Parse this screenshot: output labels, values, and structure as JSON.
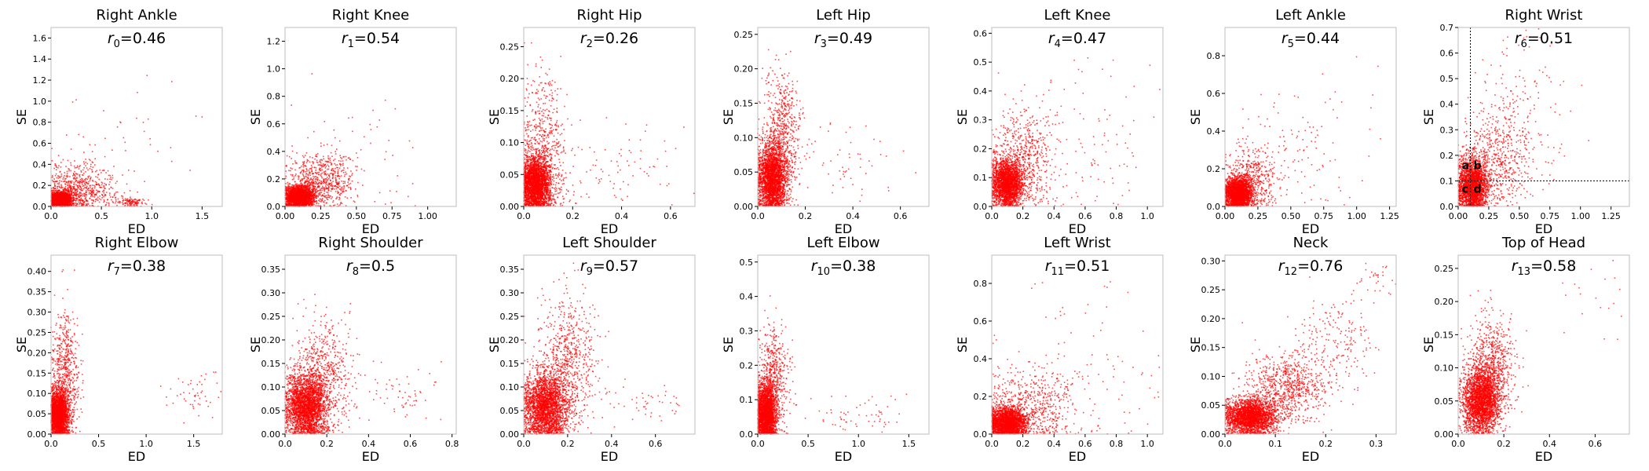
{
  "chart_data": [
    {
      "type": "scatter",
      "title": "Right Ankle",
      "r_name": "r",
      "r_sub": "0",
      "r_value": "0.46",
      "xlabel": "ED",
      "ylabel": "SE",
      "xlim": [
        0,
        1.7
      ],
      "ylim": [
        0,
        1.7
      ],
      "xticks": [
        0.0,
        0.5,
        1.0,
        1.5
      ],
      "yticks": [
        0.0,
        0.2,
        0.4,
        0.6,
        0.8,
        1.0,
        1.2,
        1.4,
        1.6
      ],
      "color": "#ff0000",
      "clusters": [
        {
          "cx": 0.1,
          "cy": 0.06,
          "sx": 0.05,
          "sy": 0.04,
          "n": 2200
        },
        {
          "cx": 0.25,
          "cy": 0.15,
          "sx": 0.18,
          "sy": 0.12,
          "n": 700
        },
        {
          "cx": 0.8,
          "cy": 0.04,
          "sx": 0.08,
          "sy": 0.02,
          "n": 120
        },
        {
          "cx": 0.6,
          "cy": 0.5,
          "sx": 0.3,
          "sy": 0.3,
          "n": 60
        }
      ]
    },
    {
      "type": "scatter",
      "title": "Right Knee",
      "r_name": "r",
      "r_sub": "1",
      "r_value": "0.54",
      "xlabel": "ED",
      "ylabel": "SE",
      "xlim": [
        0,
        1.2
      ],
      "ylim": [
        0,
        1.3
      ],
      "xticks": [
        0.0,
        0.25,
        0.5,
        0.75,
        1.0
      ],
      "yticks": [
        0.0,
        0.2,
        0.4,
        0.6,
        0.8,
        1.0,
        1.2
      ],
      "color": "#ff0000",
      "clusters": [
        {
          "cx": 0.1,
          "cy": 0.07,
          "sx": 0.05,
          "sy": 0.04,
          "n": 2200
        },
        {
          "cx": 0.25,
          "cy": 0.18,
          "sx": 0.12,
          "sy": 0.1,
          "n": 700
        },
        {
          "cx": 0.5,
          "cy": 0.35,
          "sx": 0.25,
          "sy": 0.25,
          "n": 60
        }
      ]
    },
    {
      "type": "scatter",
      "title": "Right Hip",
      "r_name": "r",
      "r_sub": "2",
      "r_value": "0.26",
      "xlabel": "ED",
      "ylabel": "SE",
      "xlim": [
        0,
        0.7
      ],
      "ylim": [
        0,
        0.28
      ],
      "xticks": [
        0.0,
        0.2,
        0.4,
        0.6
      ],
      "yticks": [
        0.0,
        0.05,
        0.1,
        0.15,
        0.2,
        0.25
      ],
      "color": "#ff0000",
      "clusters": [
        {
          "cx": 0.05,
          "cy": 0.035,
          "sx": 0.03,
          "sy": 0.02,
          "n": 2600
        },
        {
          "cx": 0.08,
          "cy": 0.08,
          "sx": 0.05,
          "sy": 0.06,
          "n": 700
        },
        {
          "cx": 0.4,
          "cy": 0.06,
          "sx": 0.12,
          "sy": 0.03,
          "n": 80
        }
      ]
    },
    {
      "type": "scatter",
      "title": "Left Hip",
      "r_name": "r",
      "r_sub": "3",
      "r_value": "0.49",
      "xlabel": "ED",
      "ylabel": "SE",
      "xlim": [
        0,
        0.72
      ],
      "ylim": [
        0,
        0.26
      ],
      "xticks": [
        0.0,
        0.2,
        0.4,
        0.6
      ],
      "yticks": [
        0.0,
        0.05,
        0.1,
        0.15,
        0.2,
        0.25
      ],
      "color": "#ff0000",
      "clusters": [
        {
          "cx": 0.06,
          "cy": 0.04,
          "sx": 0.03,
          "sy": 0.025,
          "n": 2600
        },
        {
          "cx": 0.1,
          "cy": 0.1,
          "sx": 0.04,
          "sy": 0.05,
          "n": 700
        },
        {
          "cx": 0.35,
          "cy": 0.07,
          "sx": 0.12,
          "sy": 0.03,
          "n": 60
        }
      ]
    },
    {
      "type": "scatter",
      "title": "Left Knee",
      "r_name": "r",
      "r_sub": "4",
      "r_value": "0.47",
      "xlabel": "ED",
      "ylabel": "SE",
      "xlim": [
        0,
        1.1
      ],
      "ylim": [
        0,
        0.62
      ],
      "xticks": [
        0.0,
        0.2,
        0.4,
        0.6,
        0.8,
        1.0
      ],
      "yticks": [
        0.0,
        0.1,
        0.2,
        0.3,
        0.4,
        0.5,
        0.6
      ],
      "color": "#ff0000",
      "clusters": [
        {
          "cx": 0.1,
          "cy": 0.08,
          "sx": 0.05,
          "sy": 0.04,
          "n": 2400
        },
        {
          "cx": 0.2,
          "cy": 0.16,
          "sx": 0.1,
          "sy": 0.09,
          "n": 600
        },
        {
          "cx": 0.6,
          "cy": 0.2,
          "sx": 0.25,
          "sy": 0.15,
          "n": 120
        }
      ]
    },
    {
      "type": "scatter",
      "title": "Left Ankle",
      "r_name": "r",
      "r_sub": "5",
      "r_value": "0.44",
      "xlabel": "ED",
      "ylabel": "SE",
      "xlim": [
        0,
        1.3
      ],
      "ylim": [
        0,
        0.95
      ],
      "xticks": [
        0.0,
        0.25,
        0.5,
        0.75,
        1.0,
        1.25
      ],
      "yticks": [
        0.0,
        0.2,
        0.4,
        0.6,
        0.8
      ],
      "color": "#ff0000",
      "clusters": [
        {
          "cx": 0.1,
          "cy": 0.07,
          "sx": 0.05,
          "sy": 0.04,
          "n": 2400
        },
        {
          "cx": 0.2,
          "cy": 0.14,
          "sx": 0.1,
          "sy": 0.09,
          "n": 500
        },
        {
          "cx": 0.6,
          "cy": 0.3,
          "sx": 0.3,
          "sy": 0.2,
          "n": 120
        }
      ]
    },
    {
      "type": "scatter",
      "title": "Right Wrist",
      "r_name": "r",
      "r_sub": "6",
      "r_value": "0.51",
      "xlabel": "ED",
      "ylabel": "SE",
      "xlim": [
        0,
        1.4
      ],
      "ylim": [
        0,
        0.7
      ],
      "xticks": [
        0.0,
        0.25,
        0.5,
        0.75,
        1.0,
        1.25
      ],
      "yticks": [
        0.0,
        0.1,
        0.2,
        0.3,
        0.4,
        0.5,
        0.6,
        0.7
      ],
      "color": "#ff0000",
      "threshold_x": 0.1,
      "threshold_y": 0.1,
      "quadrant_labels": [
        "a",
        "b",
        "c",
        "d"
      ],
      "clusters": [
        {
          "cx": 0.12,
          "cy": 0.08,
          "sx": 0.06,
          "sy": 0.05,
          "n": 2300
        },
        {
          "cx": 0.3,
          "cy": 0.18,
          "sx": 0.15,
          "sy": 0.1,
          "n": 600
        },
        {
          "cx": 0.5,
          "cy": 0.4,
          "sx": 0.2,
          "sy": 0.15,
          "n": 150
        }
      ]
    },
    {
      "type": "scatter",
      "title": "Right Elbow",
      "r_name": "r",
      "r_sub": "7",
      "r_value": "0.38",
      "xlabel": "ED",
      "ylabel": "SE",
      "xlim": [
        0,
        1.8
      ],
      "ylim": [
        0,
        0.44
      ],
      "xticks": [
        0.0,
        0.5,
        1.0,
        1.5
      ],
      "yticks": [
        0.0,
        0.05,
        0.1,
        0.15,
        0.2,
        0.25,
        0.3,
        0.35,
        0.4
      ],
      "color": "#ff0000",
      "clusters": [
        {
          "cx": 0.08,
          "cy": 0.05,
          "sx": 0.05,
          "sy": 0.03,
          "n": 2400
        },
        {
          "cx": 0.15,
          "cy": 0.15,
          "sx": 0.08,
          "sy": 0.08,
          "n": 600
        },
        {
          "cx": 1.5,
          "cy": 0.1,
          "sx": 0.15,
          "sy": 0.03,
          "n": 50
        }
      ]
    },
    {
      "type": "scatter",
      "title": "Right Shoulder",
      "r_name": "r",
      "r_sub": "8",
      "r_value": "0.5",
      "xlabel": "ED",
      "ylabel": "SE",
      "xlim": [
        0,
        0.82
      ],
      "ylim": [
        0,
        0.38
      ],
      "xticks": [
        0.0,
        0.2,
        0.4,
        0.6,
        0.8
      ],
      "yticks": [
        0.0,
        0.05,
        0.1,
        0.15,
        0.2,
        0.25,
        0.3,
        0.35
      ],
      "color": "#ff0000",
      "clusters": [
        {
          "cx": 0.1,
          "cy": 0.06,
          "sx": 0.05,
          "sy": 0.035,
          "n": 2600
        },
        {
          "cx": 0.18,
          "cy": 0.12,
          "sx": 0.07,
          "sy": 0.06,
          "n": 700
        },
        {
          "cx": 0.55,
          "cy": 0.08,
          "sx": 0.12,
          "sy": 0.03,
          "n": 60
        }
      ]
    },
    {
      "type": "scatter",
      "title": "Left Shoulder",
      "r_name": "r",
      "r_sub": "9",
      "r_value": "0.57",
      "xlabel": "ED",
      "ylabel": "SE",
      "xlim": [
        0,
        0.78
      ],
      "ylim": [
        0,
        0.38
      ],
      "xticks": [
        0.0,
        0.2,
        0.4,
        0.6
      ],
      "yticks": [
        0.0,
        0.05,
        0.1,
        0.15,
        0.2,
        0.25,
        0.3,
        0.35
      ],
      "color": "#ff0000",
      "clusters": [
        {
          "cx": 0.1,
          "cy": 0.06,
          "sx": 0.05,
          "sy": 0.035,
          "n": 2600
        },
        {
          "cx": 0.2,
          "cy": 0.15,
          "sx": 0.07,
          "sy": 0.07,
          "n": 700
        },
        {
          "cx": 0.55,
          "cy": 0.07,
          "sx": 0.1,
          "sy": 0.02,
          "n": 50
        }
      ]
    },
    {
      "type": "scatter",
      "title": "Left Elbow",
      "r_name": "r",
      "r_sub": "10",
      "r_value": "0.38",
      "xlabel": "ED",
      "ylabel": "SE",
      "xlim": [
        0,
        1.7
      ],
      "ylim": [
        0,
        0.52
      ],
      "xticks": [
        0.0,
        0.5,
        1.0,
        1.5
      ],
      "yticks": [
        0.0,
        0.1,
        0.2,
        0.3,
        0.4,
        0.5
      ],
      "color": "#ff0000",
      "clusters": [
        {
          "cx": 0.08,
          "cy": 0.06,
          "sx": 0.05,
          "sy": 0.04,
          "n": 2400
        },
        {
          "cx": 0.15,
          "cy": 0.15,
          "sx": 0.08,
          "sy": 0.08,
          "n": 600
        },
        {
          "cx": 1.0,
          "cy": 0.06,
          "sx": 0.3,
          "sy": 0.03,
          "n": 60
        }
      ]
    },
    {
      "type": "scatter",
      "title": "Left Wrist",
      "r_name": "r",
      "r_sub": "11",
      "r_value": "0.51",
      "xlabel": "ED",
      "ylabel": "SE",
      "xlim": [
        0,
        1.1
      ],
      "ylim": [
        0,
        0.95
      ],
      "xticks": [
        0.0,
        0.2,
        0.4,
        0.6,
        0.8,
        1.0
      ],
      "yticks": [
        0.0,
        0.2,
        0.4,
        0.6,
        0.8
      ],
      "color": "#ff0000",
      "clusters": [
        {
          "cx": 0.1,
          "cy": 0.06,
          "sx": 0.06,
          "sy": 0.04,
          "n": 2400
        },
        {
          "cx": 0.25,
          "cy": 0.15,
          "sx": 0.15,
          "sy": 0.1,
          "n": 600
        },
        {
          "cx": 0.6,
          "cy": 0.35,
          "sx": 0.3,
          "sy": 0.25,
          "n": 100
        }
      ]
    },
    {
      "type": "scatter",
      "title": "Neck",
      "r_name": "r",
      "r_sub": "12",
      "r_value": "0.76",
      "xlabel": "ED",
      "ylabel": "SE",
      "xlim": [
        0,
        0.34
      ],
      "ylim": [
        0,
        0.31
      ],
      "xticks": [
        0.0,
        0.1,
        0.2,
        0.3
      ],
      "yticks": [
        0.0,
        0.05,
        0.1,
        0.15,
        0.2,
        0.25,
        0.3
      ],
      "color": "#ff0000",
      "clusters": [
        {
          "cx": 0.05,
          "cy": 0.03,
          "sx": 0.025,
          "sy": 0.015,
          "n": 2600
        },
        {
          "cx": 0.12,
          "cy": 0.08,
          "sx": 0.04,
          "sy": 0.03,
          "n": 800
        },
        {
          "cx": 0.22,
          "cy": 0.16,
          "sx": 0.04,
          "sy": 0.04,
          "n": 200
        },
        {
          "cx": 0.3,
          "cy": 0.27,
          "sx": 0.02,
          "sy": 0.02,
          "n": 30
        }
      ]
    },
    {
      "type": "scatter",
      "title": "Top of Head",
      "r_name": "r",
      "r_sub": "13",
      "r_value": "0.58",
      "xlabel": "ED",
      "ylabel": "SE",
      "xlim": [
        0,
        0.75
      ],
      "ylim": [
        0,
        0.27
      ],
      "xticks": [
        0.0,
        0.2,
        0.4,
        0.6
      ],
      "yticks": [
        0.0,
        0.05,
        0.1,
        0.15,
        0.2,
        0.25
      ],
      "color": "#ff0000",
      "clusters": [
        {
          "cx": 0.1,
          "cy": 0.05,
          "sx": 0.04,
          "sy": 0.025,
          "n": 2600
        },
        {
          "cx": 0.15,
          "cy": 0.1,
          "sx": 0.05,
          "sy": 0.04,
          "n": 700
        },
        {
          "cx": 0.6,
          "cy": 0.2,
          "sx": 0.1,
          "sy": 0.05,
          "n": 20
        }
      ]
    }
  ]
}
